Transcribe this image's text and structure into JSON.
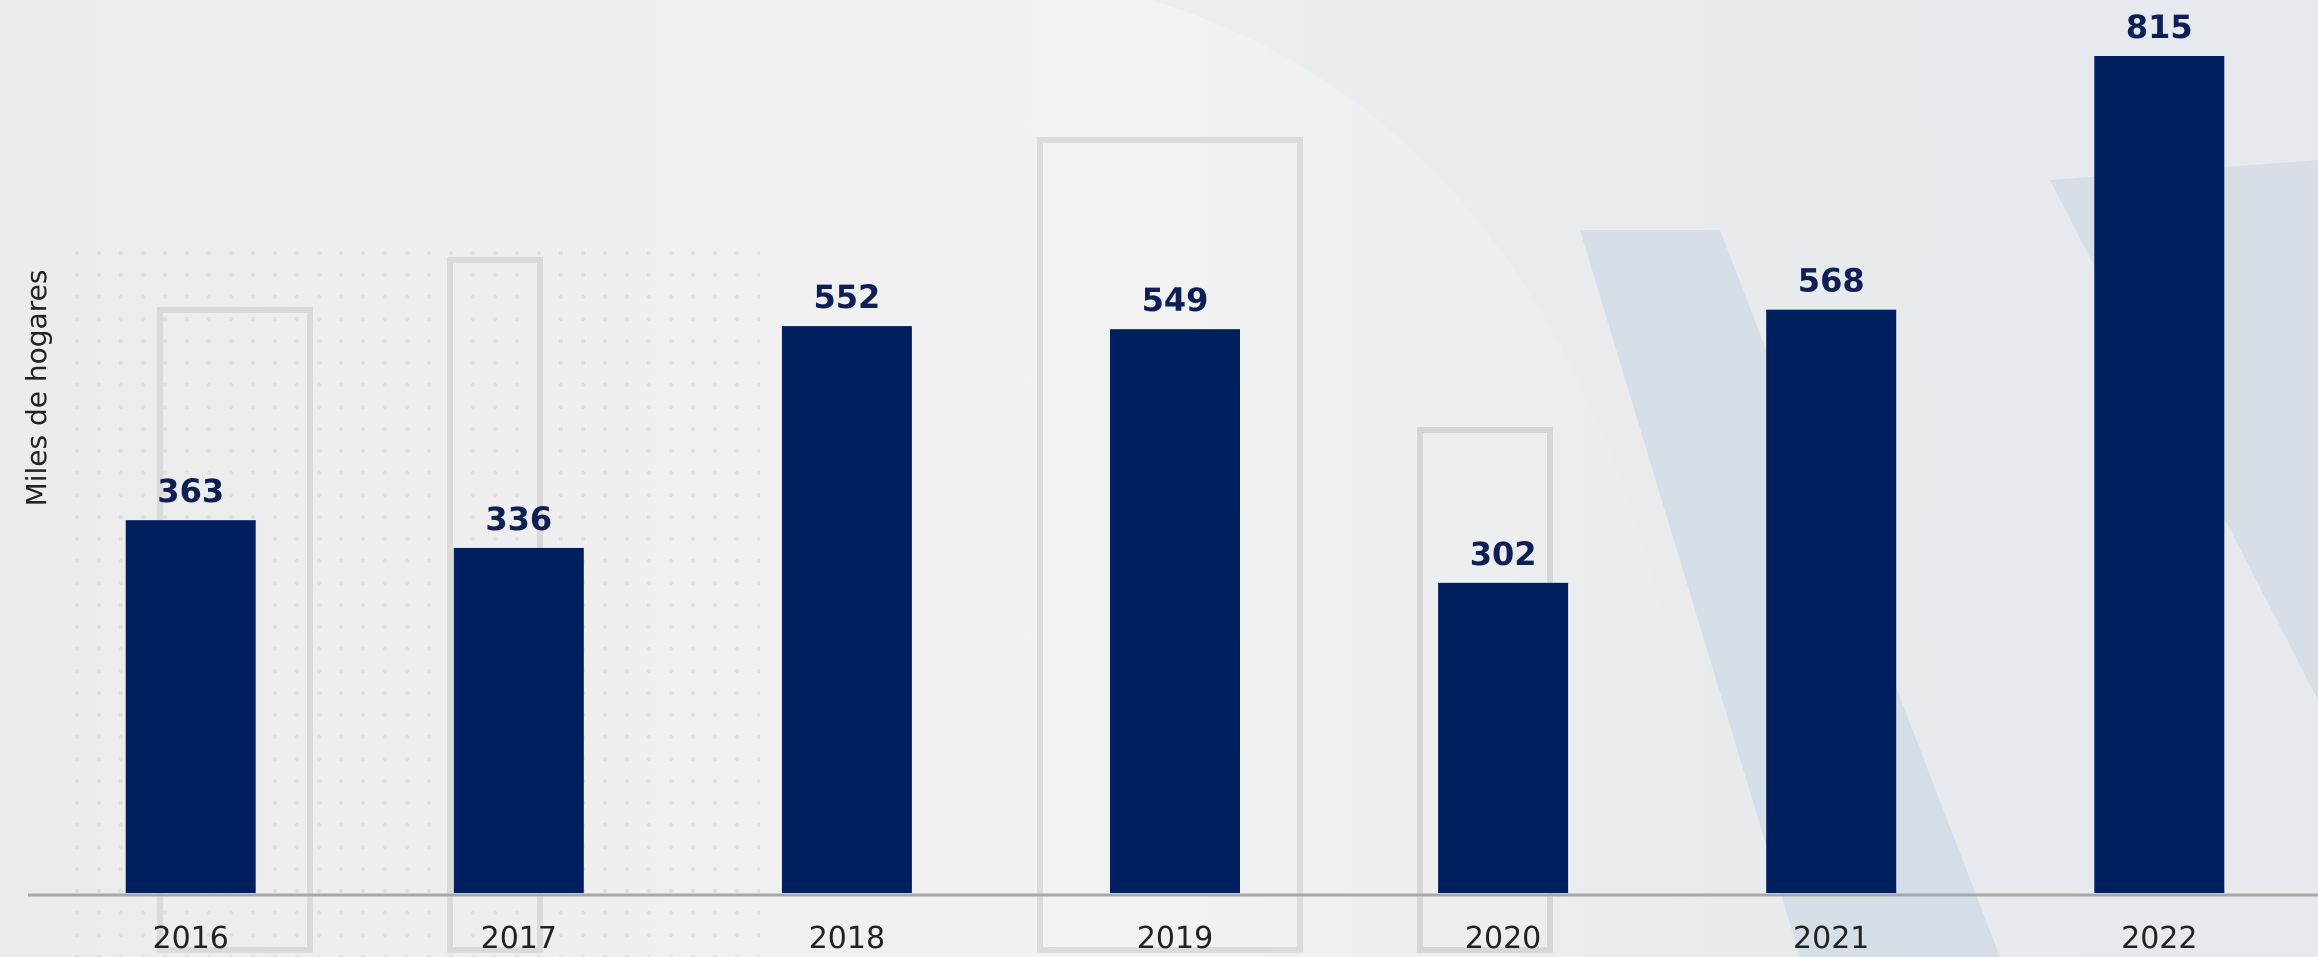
{
  "chart_data": {
    "type": "bar",
    "y_label": "Miles de hogares",
    "categories": [
      "2016",
      "2017",
      "2018",
      "2019",
      "2020",
      "2021",
      "2022"
    ],
    "values": [
      363,
      336,
      552,
      549,
      302,
      568,
      815
    ],
    "color": "#001f5f"
  }
}
